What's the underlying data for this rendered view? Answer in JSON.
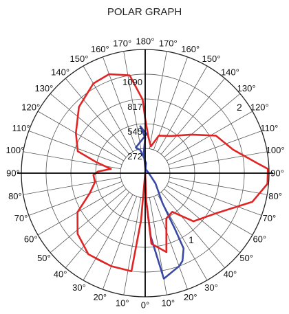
{
  "chart_data": {
    "type": "line",
    "title": "POLAR GRAPH",
    "rlim": [
      0,
      1362
    ],
    "r_ticks": [
      "272",
      "545",
      "817",
      "1090"
    ],
    "angle_labels_left": [
      "0°",
      "10°",
      "20°",
      "30°",
      "40°",
      "50°",
      "60°",
      "70°",
      "80°",
      "90°",
      "100°",
      "110°",
      "120°",
      "130°",
      "140°",
      "150°",
      "160°",
      "170°"
    ],
    "angle_labels_right": [
      "10°",
      "20°",
      "30°",
      "40°",
      "50°",
      "60°",
      "70°",
      "80°",
      "90°",
      "100°",
      "110°",
      "120°",
      "130°",
      "140°",
      "150°",
      "160°",
      "170°"
    ],
    "angle_label_top": "180°",
    "grid": true,
    "annotations": [
      "1",
      "2"
    ],
    "colors": {
      "series1": "#3949a6",
      "series2": "#e02424",
      "axis": "#000000",
      "grid": "#555555"
    },
    "series": [
      {
        "color": "#3949a6",
        "points": [
          [
            0,
            0
          ],
          [
            175,
            110
          ],
          [
            185,
            175
          ],
          [
            192,
            260
          ],
          [
            200,
            300
          ],
          [
            178,
            430
          ],
          [
            183,
            480
          ],
          [
            186,
            520
          ],
          [
            180,
            390
          ],
          [
            184,
            230
          ],
          [
            178,
            50
          ],
          [
            90,
            40
          ],
          [
            45,
            160
          ],
          [
            30,
            380
          ],
          [
            28,
            700
          ],
          [
            27,
            930
          ],
          [
            23,
            1050
          ],
          [
            20,
            1090
          ],
          [
            10,
            1180
          ],
          [
            5,
            700
          ],
          [
            2,
            300
          ],
          [
            0,
            0
          ]
        ]
      },
      {
        "color": "#e02424",
        "points": [
          [
            0,
            0
          ],
          [
            355,
            520
          ],
          [
            352,
            1090
          ],
          [
            340,
            1090
          ],
          [
            325,
            1090
          ],
          [
            312,
            1000
          ],
          [
            300,
            860
          ],
          [
            290,
            650
          ],
          [
            280,
            560
          ],
          [
            272,
            570
          ],
          [
            268,
            520
          ],
          [
            263,
            380
          ],
          [
            257,
            560
          ],
          [
            252,
            780
          ],
          [
            240,
            880
          ],
          [
            225,
            1030
          ],
          [
            210,
            1140
          ],
          [
            200,
            1160
          ],
          [
            189,
            1090
          ],
          [
            182,
            810
          ],
          [
            180,
            600
          ],
          [
            175,
            400
          ],
          [
            168,
            300
          ],
          [
            160,
            440
          ],
          [
            145,
            500
          ],
          [
            130,
            660
          ],
          [
            118,
            880
          ],
          [
            105,
            1000
          ],
          [
            95,
            1240
          ],
          [
            92,
            1350
          ],
          [
            85,
            1350
          ],
          [
            75,
            1220
          ],
          [
            60,
            890
          ],
          [
            45,
            750
          ],
          [
            35,
            520
          ],
          [
            25,
            550
          ],
          [
            15,
            900
          ],
          [
            5,
            780
          ],
          [
            2,
            300
          ],
          [
            0,
            0
          ]
        ]
      }
    ]
  }
}
